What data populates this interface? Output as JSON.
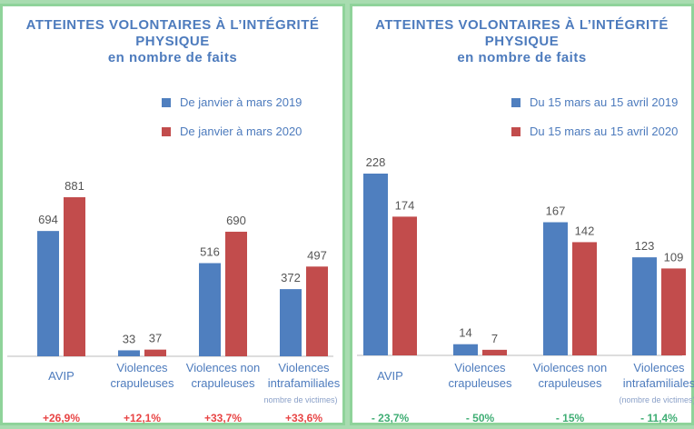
{
  "chart_data": [
    {
      "type": "bar",
      "title": "ATTEINTES VOLONTAIRES À L’INTÉGRITÉ PHYSIQUE",
      "subtitle": "en nombre de faits",
      "categories": [
        "AVIP",
        "Violences crapuleuses",
        "Violences non crapuleuses",
        "Violences intrafamiliales"
      ],
      "note": "nombre de victimes)",
      "series": [
        {
          "name": "De janvier à mars 2019",
          "color": "#4f7fbf",
          "values": [
            694,
            33,
            516,
            372
          ]
        },
        {
          "name": "De janvier à mars 2020",
          "color": "#c24c4c",
          "values": [
            881,
            37,
            690,
            497
          ]
        }
      ],
      "changes": [
        "+26,9%",
        "+12,1%",
        "+33,7%",
        "+33,6%"
      ],
      "change_color": "#e84545",
      "legend": "top-right"
    },
    {
      "type": "bar",
      "title": "ATTEINTES VOLONTAIRES À L’INTÉGRITÉ PHYSIQUE",
      "subtitle": "en nombre de faits",
      "categories": [
        "AVIP",
        "Violences crapuleuses",
        "Violences non crapuleuses",
        "Violences intrafamiliales"
      ],
      "note": "(nombre de victimes)",
      "series": [
        {
          "name": "Du 15 mars au 15 avril 2019",
          "color": "#4f7fbf",
          "values": [
            228,
            14,
            167,
            123
          ]
        },
        {
          "name": "Du 15 mars au 15 avril 2020",
          "color": "#c24c4c",
          "values": [
            174,
            7,
            142,
            109
          ]
        }
      ],
      "changes": [
        "- 23,7%",
        "- 50%",
        "- 15%",
        "- 11,4%"
      ],
      "change_color": "#3fae74",
      "legend": "top-right"
    }
  ]
}
